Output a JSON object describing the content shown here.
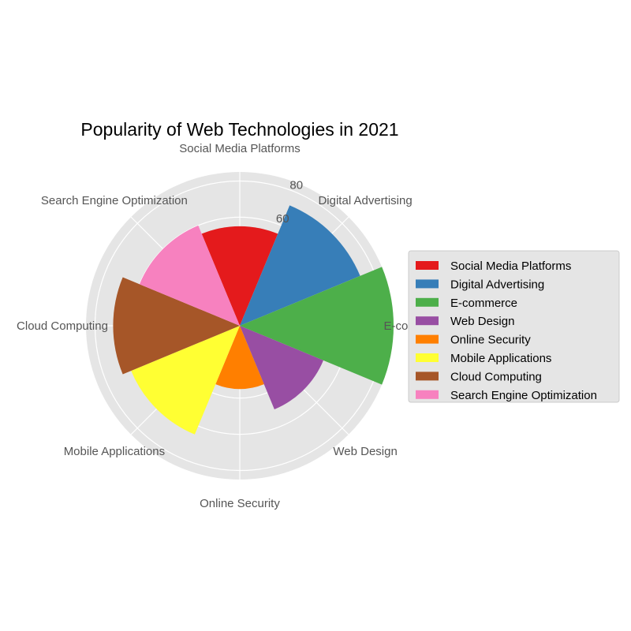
{
  "chart_data": {
    "type": "polar-bar",
    "title": "Popularity of Web Technologies in 2021",
    "categories": [
      "Social Media Platforms",
      "Digital Advertising",
      "E-commerce",
      "Web Design",
      "Online Security",
      "Mobile Applications",
      "Cloud Computing",
      "Search Engine Optimization"
    ],
    "values": [
      55,
      72,
      85,
      50,
      35,
      65,
      70,
      60
    ],
    "colors": [
      "#e41a1c",
      "#377eb8",
      "#4daf4a",
      "#984ea3",
      "#ff7f00",
      "#ffff33",
      "#a65628",
      "#f781bf"
    ],
    "radial_ticks": [
      20,
      40,
      60,
      80
    ],
    "visible_radial_tick_labels": [
      "80",
      "60"
    ],
    "r_max": 85,
    "grid": true,
    "legend_position": "right"
  }
}
